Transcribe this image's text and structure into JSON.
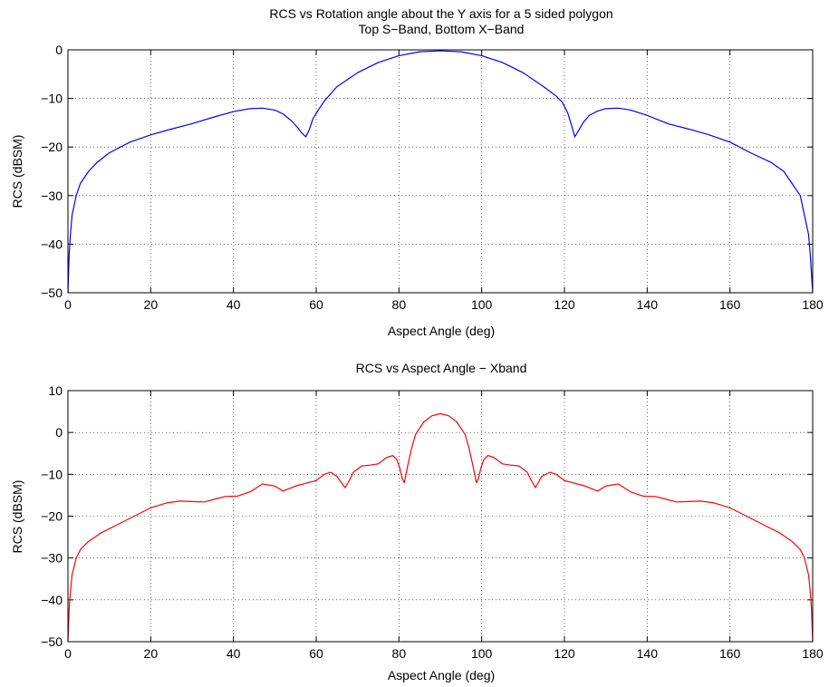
{
  "chart_data": [
    {
      "type": "line",
      "title": [
        "RCS vs Rotation angle about the Y axis for a 5 sided polygon",
        "Top S−Band, Bottom X−Band"
      ],
      "xlabel": "Aspect Angle (deg)",
      "ylabel": "RCS (dBSM)",
      "xlim": [
        0,
        180
      ],
      "ylim": [
        -50,
        0
      ],
      "xticks": [
        0,
        20,
        40,
        60,
        80,
        100,
        120,
        140,
        160,
        180
      ],
      "yticks": [
        0,
        -10,
        -20,
        -30,
        -40,
        -50
      ],
      "grid": true,
      "series": [
        {
          "color": "#0000ff",
          "x": [
            0,
            0.3,
            0.6,
            1,
            2,
            3,
            5,
            7,
            10,
            15,
            20,
            25,
            30,
            35,
            40,
            44,
            47,
            50,
            52,
            54,
            55.5,
            56.5,
            57.5,
            58.3,
            59.2,
            60.5,
            62,
            65,
            70,
            75,
            80,
            85,
            90,
            95,
            100,
            105,
            110,
            115,
            118,
            119.5,
            120.8,
            121.7,
            122.5,
            123.5,
            124.5,
            126,
            128,
            130,
            133,
            136,
            140,
            145,
            150,
            155,
            160,
            165,
            170,
            173,
            175,
            177,
            178,
            179,
            179.4,
            179.7,
            180
          ],
          "y": [
            -50,
            -42,
            -38,
            -34,
            -30,
            -27.5,
            -25,
            -23.2,
            -21.2,
            -19,
            -17.5,
            -16.3,
            -15.2,
            -13.9,
            -12.7,
            -12.1,
            -12,
            -12.4,
            -13.2,
            -14.6,
            -16,
            -17.1,
            -17.9,
            -16.5,
            -14.2,
            -12.4,
            -10.5,
            -7.6,
            -4.7,
            -2.6,
            -1.2,
            -0.4,
            -0.2,
            -0.4,
            -1.2,
            -2.6,
            -4.7,
            -7.6,
            -9.5,
            -10.8,
            -13,
            -15.5,
            -17.9,
            -16.5,
            -15,
            -13.5,
            -12.6,
            -12.1,
            -12,
            -12.4,
            -13.5,
            -15.2,
            -16.3,
            -17.5,
            -19,
            -21.2,
            -23.2,
            -25,
            -27.5,
            -30,
            -34,
            -38,
            -42,
            -46,
            -50
          ]
        }
      ]
    },
    {
      "type": "line",
      "title": "RCS vs Aspect Angle − Xband",
      "xlabel": "Aspect Angle (deg)",
      "ylabel": "RCS (dBSM)",
      "xlim": [
        0,
        180
      ],
      "ylim": [
        -50,
        10
      ],
      "xticks": [
        0,
        20,
        40,
        60,
        80,
        100,
        120,
        140,
        160,
        180
      ],
      "yticks": [
        10,
        0,
        -10,
        -20,
        -30,
        -40,
        -50
      ],
      "grid": true,
      "series": [
        {
          "color": "#ff0000",
          "x": [
            0,
            0.3,
            0.6,
            1,
            2,
            3,
            5,
            8,
            12,
            16,
            20,
            24,
            27,
            30,
            33,
            36,
            38,
            41,
            44,
            47,
            50,
            52,
            55,
            58,
            60,
            62,
            63.5,
            65,
            67,
            68,
            69,
            71,
            73,
            75,
            77,
            78.5,
            79.5,
            80.2,
            80.8,
            81.3,
            82,
            83,
            84,
            86,
            88,
            90,
            92,
            94,
            96,
            97,
            98,
            98.7,
            99.2,
            99.8,
            100.5,
            101.5,
            103,
            105,
            107,
            109,
            111,
            112,
            113,
            114.5,
            116.5,
            118,
            120,
            122,
            125,
            128,
            130,
            133,
            136,
            139,
            142,
            144,
            147,
            150,
            153,
            156,
            160,
            164,
            168,
            172,
            175,
            177,
            178,
            179,
            179.4,
            179.7,
            180
          ],
          "y": [
            -50,
            -42,
            -38,
            -34,
            -30,
            -28,
            -26,
            -24,
            -22,
            -20,
            -18,
            -16.8,
            -16.4,
            -16.5,
            -16.6,
            -15.8,
            -15.3,
            -15.2,
            -14.2,
            -12.3,
            -12.8,
            -14,
            -12.8,
            -12,
            -11.5,
            -10,
            -9.5,
            -10.5,
            -13.2,
            -11.5,
            -9.5,
            -8,
            -7.8,
            -7.5,
            -6,
            -5.5,
            -6.5,
            -8.5,
            -11,
            -12,
            -8.5,
            -4,
            -0.5,
            2.5,
            4,
            4.5,
            4,
            2.5,
            -0.5,
            -4,
            -8.5,
            -12,
            -11,
            -8.5,
            -6.5,
            -5.5,
            -6,
            -7.5,
            -7.8,
            -8,
            -9.5,
            -11.5,
            -13.2,
            -10.5,
            -9.5,
            -10,
            -11.5,
            -12,
            -12.8,
            -14,
            -12.8,
            -12.3,
            -14.2,
            -15.2,
            -15.3,
            -15.8,
            -16.6,
            -16.5,
            -16.4,
            -16.8,
            -18,
            -20,
            -22,
            -24,
            -26,
            -28,
            -30,
            -34,
            -38,
            -42,
            -50
          ]
        }
      ]
    }
  ]
}
